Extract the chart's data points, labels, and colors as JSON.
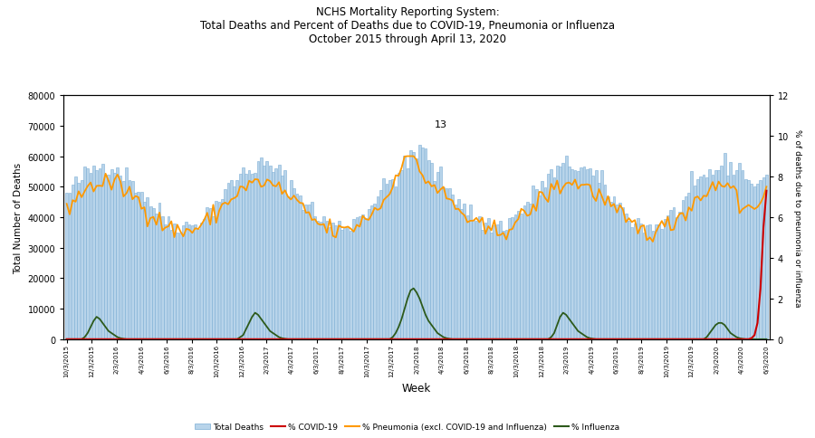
{
  "title": "NCHS Mortality Reporting System:\nTotal Deaths and Percent of Deaths due to COVID-19, Pneumonia or Influenza\nOctober 2015 through April 13, 2020",
  "xlabel": "Week",
  "ylabel_left": "Total Number of Deaths",
  "ylabel_right": "% of deaths due to pneumonia or influenza",
  "ylim_left": [
    0,
    80000
  ],
  "ylim_right": [
    0,
    12
  ],
  "annotation_text": "13",
  "bar_color": "#b8d4ea",
  "bar_edgecolor": "#7aadd4",
  "covid_color": "#cc0000",
  "pneumonia_color": "#ff9900",
  "influenza_color": "#2d5a1b",
  "background_color": "#ffffff",
  "tick_labels": [
    "10/3/2015",
    "12/3/2015",
    "2/3/2016",
    "4/3/2016",
    "6/3/2016",
    "8/3/2016",
    "10/3/2016",
    "12/3/2016",
    "2/3/2017",
    "4/3/2017",
    "6/3/2017",
    "8/3/2017",
    "10/3/2017",
    "12/3/2017",
    "2/3/2018",
    "4/3/2018",
    "6/3/2018",
    "8/3/2018",
    "10/3/2018",
    "12/3/2018",
    "2/3/2019",
    "4/3/2019",
    "6/3/2019",
    "8/3/2019",
    "10/3/2019",
    "12/3/2019",
    "2/3/2020",
    "4/3/2020",
    "6/3/2020"
  ],
  "yticks_left": [
    0,
    10000,
    20000,
    30000,
    40000,
    50000,
    60000,
    70000,
    80000
  ],
  "yticks_right": [
    0,
    2,
    4,
    6,
    8,
    10,
    12
  ]
}
